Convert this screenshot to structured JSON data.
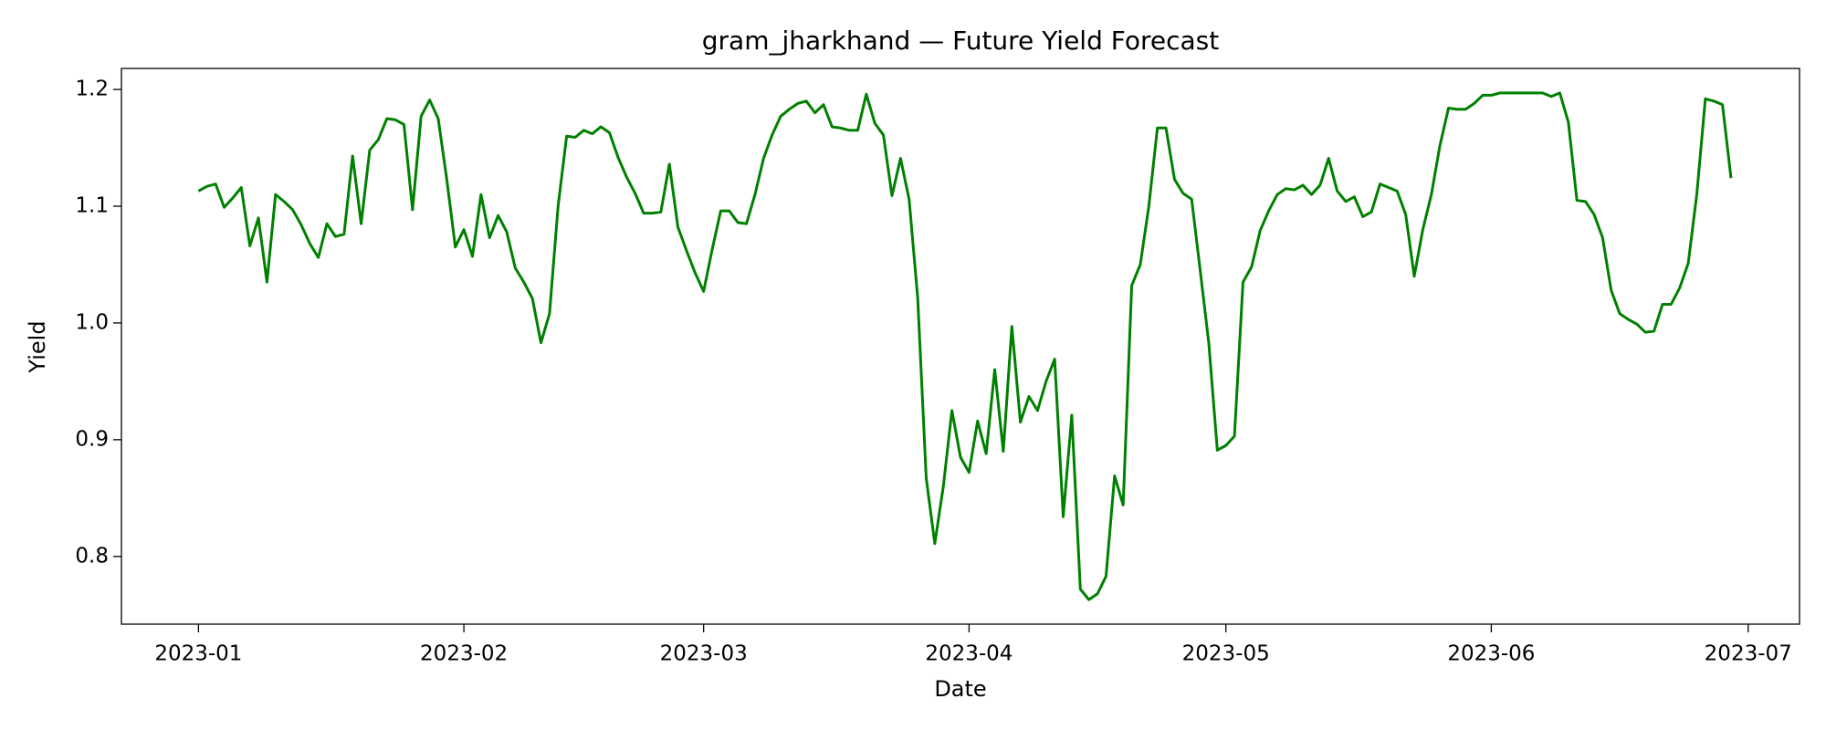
{
  "chart_data": {
    "type": "line",
    "title": "gram_jharkhand — Future Yield Forecast",
    "xlabel": "Date",
    "ylabel": "Yield",
    "x": [
      "2023-01-01",
      "2023-01-02",
      "2023-01-03",
      "2023-01-04",
      "2023-01-05",
      "2023-01-06",
      "2023-01-07",
      "2023-01-08",
      "2023-01-09",
      "2023-01-10",
      "2023-01-11",
      "2023-01-12",
      "2023-01-13",
      "2023-01-14",
      "2023-01-15",
      "2023-01-16",
      "2023-01-17",
      "2023-01-18",
      "2023-01-19",
      "2023-01-20",
      "2023-01-21",
      "2023-01-22",
      "2023-01-23",
      "2023-01-24",
      "2023-01-25",
      "2023-01-26",
      "2023-01-27",
      "2023-01-28",
      "2023-01-29",
      "2023-01-30",
      "2023-01-31",
      "2023-02-01",
      "2023-02-02",
      "2023-02-03",
      "2023-02-04",
      "2023-02-05",
      "2023-02-06",
      "2023-02-07",
      "2023-02-08",
      "2023-02-09",
      "2023-02-10",
      "2023-02-11",
      "2023-02-12",
      "2023-02-13",
      "2023-02-14",
      "2023-02-15",
      "2023-02-16",
      "2023-02-17",
      "2023-02-18",
      "2023-02-19",
      "2023-02-20",
      "2023-02-21",
      "2023-02-22",
      "2023-02-23",
      "2023-02-24",
      "2023-02-25",
      "2023-02-26",
      "2023-02-27",
      "2023-02-28",
      "2023-03-01",
      "2023-03-02",
      "2023-03-03",
      "2023-03-04",
      "2023-03-05",
      "2023-03-06",
      "2023-03-07",
      "2023-03-08",
      "2023-03-09",
      "2023-03-10",
      "2023-03-11",
      "2023-03-12",
      "2023-03-13",
      "2023-03-14",
      "2023-03-15",
      "2023-03-16",
      "2023-03-17",
      "2023-03-18",
      "2023-03-19",
      "2023-03-20",
      "2023-03-21",
      "2023-03-22",
      "2023-03-23",
      "2023-03-24",
      "2023-03-25",
      "2023-03-26",
      "2023-03-27",
      "2023-03-28",
      "2023-03-29",
      "2023-03-30",
      "2023-03-31",
      "2023-04-01",
      "2023-04-02",
      "2023-04-03",
      "2023-04-04",
      "2023-04-05",
      "2023-04-06",
      "2023-04-07",
      "2023-04-08",
      "2023-04-09",
      "2023-04-10",
      "2023-04-11",
      "2023-04-12",
      "2023-04-13",
      "2023-04-14",
      "2023-04-15",
      "2023-04-16",
      "2023-04-17",
      "2023-04-18",
      "2023-04-19",
      "2023-04-20",
      "2023-04-21",
      "2023-04-22",
      "2023-04-23",
      "2023-04-24",
      "2023-04-25",
      "2023-04-26",
      "2023-04-27",
      "2023-04-28",
      "2023-04-29",
      "2023-04-30",
      "2023-05-01",
      "2023-05-02",
      "2023-05-03",
      "2023-05-04",
      "2023-05-05",
      "2023-05-06",
      "2023-05-07",
      "2023-05-08",
      "2023-05-09",
      "2023-05-10",
      "2023-05-11",
      "2023-05-12",
      "2023-05-13",
      "2023-05-14",
      "2023-05-15",
      "2023-05-16",
      "2023-05-17",
      "2023-05-18",
      "2023-05-19",
      "2023-05-20",
      "2023-05-21",
      "2023-05-22",
      "2023-05-23",
      "2023-05-24",
      "2023-05-25",
      "2023-05-26",
      "2023-05-27",
      "2023-05-28",
      "2023-05-29",
      "2023-05-30",
      "2023-05-31",
      "2023-06-01",
      "2023-06-02",
      "2023-06-03",
      "2023-06-04",
      "2023-06-05",
      "2023-06-06",
      "2023-06-07",
      "2023-06-08",
      "2023-06-09",
      "2023-06-10",
      "2023-06-11",
      "2023-06-12",
      "2023-06-13",
      "2023-06-14",
      "2023-06-15",
      "2023-06-16",
      "2023-06-17",
      "2023-06-18",
      "2023-06-19",
      "2023-06-20",
      "2023-06-21",
      "2023-06-22",
      "2023-06-23",
      "2023-06-24",
      "2023-06-25",
      "2023-06-26",
      "2023-06-27",
      "2023-06-28",
      "2023-06-29"
    ],
    "series": [
      {
        "color": "#008000",
        "values": [
          1.113,
          1.117,
          1.119,
          1.099,
          1.107,
          1.116,
          1.066,
          1.09,
          1.035,
          1.11,
          1.104,
          1.097,
          1.084,
          1.068,
          1.056,
          1.085,
          1.074,
          1.076,
          1.143,
          1.085,
          1.148,
          1.157,
          1.175,
          1.174,
          1.17,
          1.097,
          1.177,
          1.191,
          1.175,
          1.123,
          1.065,
          1.08,
          1.057,
          1.11,
          1.073,
          1.092,
          1.078,
          1.047,
          1.035,
          1.021,
          0.983,
          1.008,
          1.1,
          1.16,
          1.159,
          1.165,
          1.162,
          1.168,
          1.163,
          1.142,
          1.125,
          1.111,
          1.094,
          1.094,
          1.095,
          1.136,
          1.082,
          1.062,
          1.043,
          1.027,
          1.063,
          1.096,
          1.096,
          1.086,
          1.085,
          1.11,
          1.141,
          1.161,
          1.177,
          1.183,
          1.188,
          1.19,
          1.18,
          1.187,
          1.168,
          1.167,
          1.165,
          1.165,
          1.196,
          1.171,
          1.161,
          1.109,
          1.141,
          1.106,
          1.022,
          0.867,
          0.811,
          0.86,
          0.925,
          0.885,
          0.872,
          0.916,
          0.888,
          0.96,
          0.89,
          0.997,
          0.915,
          0.937,
          0.925,
          0.95,
          0.969,
          0.834,
          0.921,
          0.772,
          0.763,
          0.768,
          0.783,
          0.869,
          0.844,
          1.032,
          1.05,
          1.1,
          1.167,
          1.167,
          1.123,
          1.111,
          1.106,
          1.045,
          0.983,
          0.891,
          0.895,
          0.903,
          1.035,
          1.048,
          1.079,
          1.096,
          1.11,
          1.115,
          1.114,
          1.118,
          1.11,
          1.118,
          1.141,
          1.113,
          1.104,
          1.108,
          1.091,
          1.095,
          1.119,
          1.116,
          1.113,
          1.093,
          1.04,
          1.08,
          1.11,
          1.152,
          1.184,
          1.183,
          1.183,
          1.188,
          1.195,
          1.195,
          1.197,
          1.197,
          1.197,
          1.197,
          1.197,
          1.197,
          1.194,
          1.197,
          1.172,
          1.105,
          1.104,
          1.093,
          1.073,
          1.028,
          1.008,
          1.003,
          0.999,
          0.992,
          0.993,
          1.016,
          1.016,
          1.03,
          1.051,
          1.11,
          1.192,
          1.19,
          1.187,
          1.124
        ]
      }
    ],
    "xlim": [
      "2022-12-23",
      "2023-07-07"
    ],
    "xticks": [
      {
        "value": "2023-01-01",
        "label": "2023-01"
      },
      {
        "value": "2023-02-01",
        "label": "2023-02"
      },
      {
        "value": "2023-03-01",
        "label": "2023-03"
      },
      {
        "value": "2023-04-01",
        "label": "2023-04"
      },
      {
        "value": "2023-05-01",
        "label": "2023-05"
      },
      {
        "value": "2023-06-01",
        "label": "2023-06"
      },
      {
        "value": "2023-07-01",
        "label": "2023-07"
      }
    ],
    "ylim": [
      0.742,
      1.218
    ],
    "yticks": [
      0.8,
      0.9,
      {
        "value": 1.0,
        "label": "1.0"
      },
      1.1,
      1.2
    ],
    "grid": false
  }
}
